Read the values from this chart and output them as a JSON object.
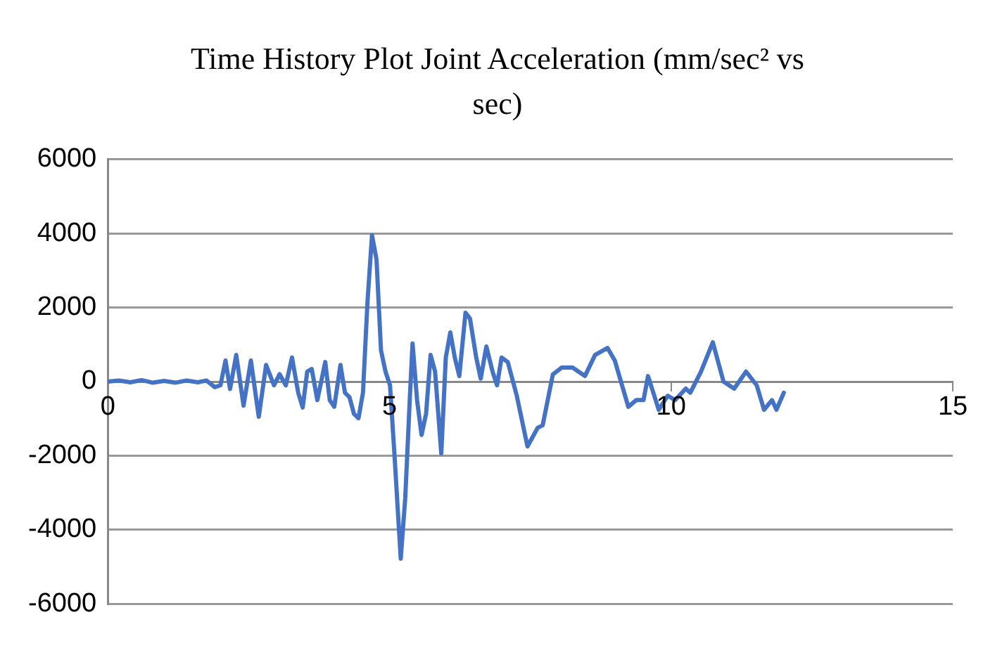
{
  "chart_data": {
    "type": "line",
    "title": "Time History Plot Joint Acceleration (mm/sec² vs sec)",
    "x": [
      0,
      0.2,
      0.4,
      0.6,
      0.8,
      1.0,
      1.2,
      1.4,
      1.6,
      1.75,
      1.9,
      2.0,
      2.09,
      2.17,
      2.28,
      2.41,
      2.54,
      2.68,
      2.81,
      2.95,
      3.05,
      3.16,
      3.27,
      3.38,
      3.46,
      3.54,
      3.62,
      3.72,
      3.86,
      3.94,
      4.02,
      4.13,
      4.21,
      4.29,
      4.37,
      4.45,
      4.53,
      4.61,
      4.69,
      4.77,
      4.85,
      4.93,
      5.01,
      5.09,
      5.2,
      5.28,
      5.36,
      5.41,
      5.49,
      5.57,
      5.65,
      5.73,
      5.81,
      5.92,
      6.0,
      6.08,
      6.16,
      6.24,
      6.35,
      6.43,
      6.54,
      6.62,
      6.72,
      6.83,
      6.91,
      6.99,
      7.1,
      7.26,
      7.45,
      7.63,
      7.72,
      7.9,
      8.06,
      8.25,
      8.47,
      8.65,
      8.87,
      9.0,
      9.24,
      9.38,
      9.51,
      9.59,
      9.78,
      9.94,
      10.07,
      10.26,
      10.34,
      10.53,
      10.74,
      10.93,
      11.12,
      11.33,
      11.52,
      11.65,
      11.79,
      11.87,
      12.0
    ],
    "series": [
      {
        "color": "#4472c4",
        "values": [
          0,
          30,
          -20,
          40,
          -30,
          20,
          -30,
          30,
          -20,
          30,
          -150,
          -100,
          570,
          -200,
          720,
          -650,
          570,
          -950,
          450,
          -100,
          200,
          -100,
          650,
          -300,
          -700,
          270,
          340,
          -500,
          530,
          -500,
          -680,
          450,
          -300,
          -420,
          -870,
          -990,
          -300,
          2160,
          3950,
          3300,
          840,
          270,
          -100,
          -2000,
          -4780,
          -3150,
          -500,
          1030,
          -500,
          -1440,
          -870,
          720,
          270,
          -1940,
          650,
          1330,
          650,
          150,
          1860,
          1700,
          650,
          80,
          950,
          270,
          -100,
          650,
          530,
          -380,
          -1750,
          -1250,
          -1180,
          190,
          380,
          380,
          150,
          720,
          910,
          570,
          -680,
          -500,
          -500,
          150,
          -760,
          -380,
          -500,
          -190,
          -300,
          270,
          1060,
          0,
          -190,
          270,
          -100,
          -760,
          -500,
          -760,
          -300
        ]
      }
    ],
    "xlim": [
      0,
      15
    ],
    "xticks": [
      0,
      5,
      10,
      15
    ],
    "ylim": [
      -6000,
      6000
    ],
    "yticks": [
      -6000,
      -4000,
      -2000,
      0,
      2000,
      4000,
      6000
    ],
    "grid": "y",
    "legend": false,
    "marker": "none",
    "line_style": "solid"
  }
}
